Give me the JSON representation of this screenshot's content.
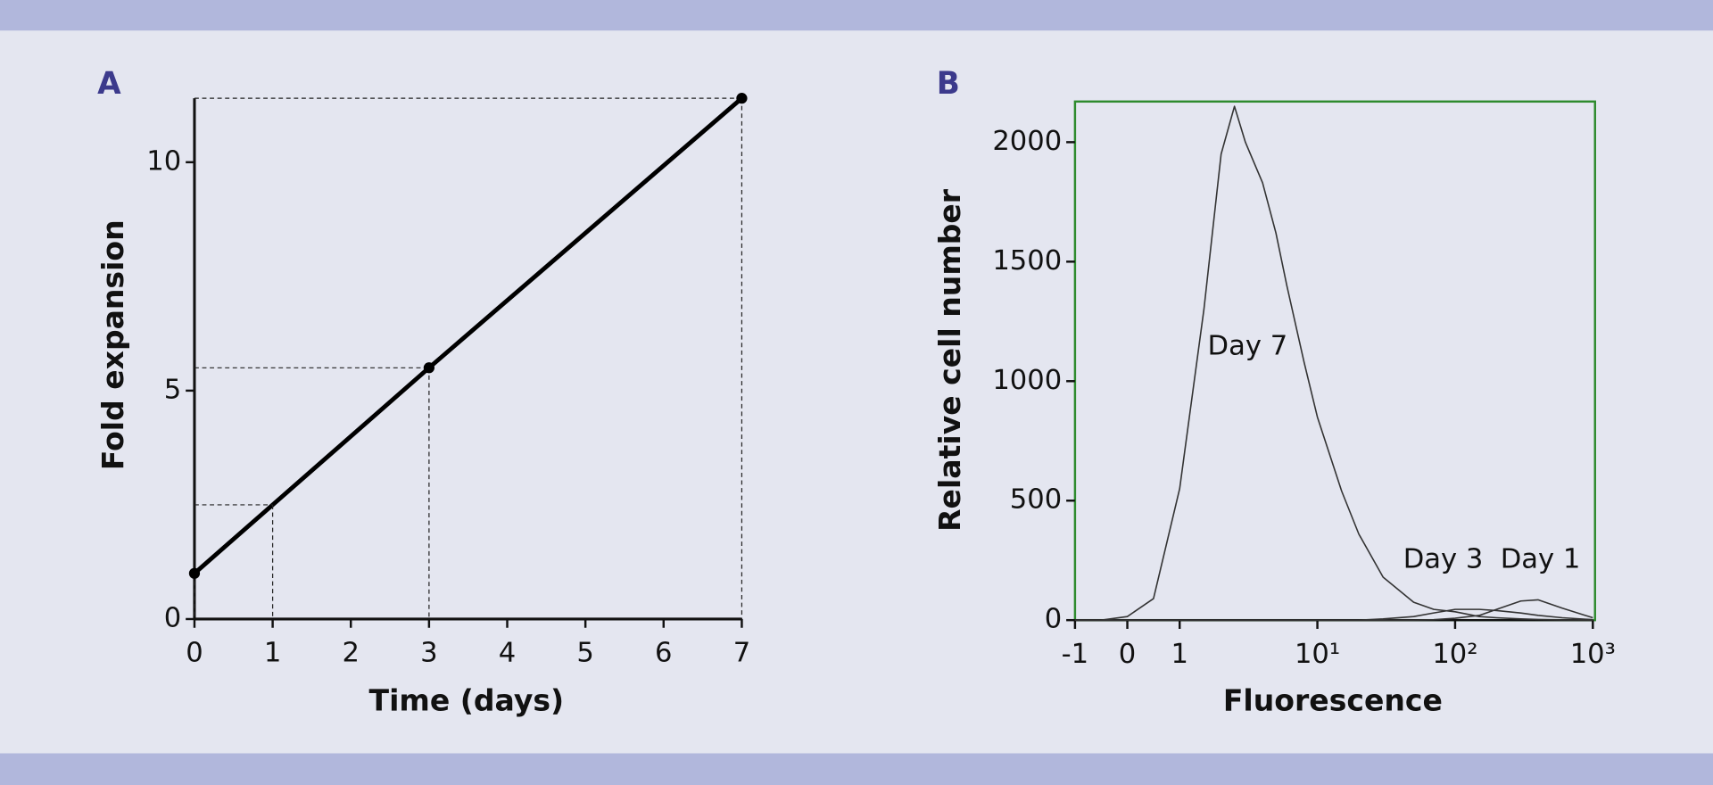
{
  "chart_data": [
    {
      "type": "line",
      "panel": "A",
      "xlabel": "Time (days)",
      "ylabel": "Fold expansion",
      "x": [
        0,
        1,
        3,
        7
      ],
      "values": [
        1,
        2.5,
        5.5,
        11.4
      ],
      "markers": [
        true,
        false,
        true,
        true
      ],
      "drop_lines": true,
      "color": "#000000",
      "xlim": [
        0,
        7
      ],
      "ylim": [
        0,
        11.4
      ],
      "xticks": [
        0,
        1,
        2,
        3,
        4,
        5,
        6,
        7
      ],
      "yticks": [
        0,
        5,
        10
      ]
    },
    {
      "type": "line",
      "panel": "B",
      "xlabel": "Fluorescence",
      "ylabel": "Relative cell number",
      "xscale": "biexponential",
      "frame_color": "#2e8b2e",
      "x": [
        -1,
        -0.5,
        0,
        0.5,
        1,
        1.5,
        2,
        2.5,
        3,
        4,
        5,
        6,
        8,
        10,
        15,
        20,
        30,
        50,
        70,
        100,
        150,
        200,
        300,
        400,
        600,
        1000
      ],
      "series": [
        {
          "name": "Day 7",
          "color": "#333333",
          "values": [
            0,
            0,
            15,
            90,
            550,
            1300,
            1950,
            2150,
            2000,
            1830,
            1620,
            1400,
            1080,
            850,
            540,
            360,
            180,
            75,
            45,
            35,
            15,
            10,
            5,
            3,
            1,
            0
          ]
        },
        {
          "name": "Day 3",
          "color": "#333333",
          "values": [
            0,
            0,
            0,
            0,
            0,
            0,
            0,
            0,
            0,
            0,
            0,
            0,
            0,
            0,
            0,
            0,
            5,
            15,
            30,
            45,
            45,
            40,
            30,
            20,
            10,
            2
          ]
        },
        {
          "name": "Day 1",
          "color": "#333333",
          "values": [
            0,
            0,
            0,
            0,
            0,
            0,
            0,
            0,
            0,
            0,
            0,
            0,
            0,
            0,
            0,
            0,
            0,
            0,
            2,
            8,
            20,
            45,
            80,
            85,
            50,
            10
          ]
        }
      ],
      "xlim": [
        -1,
        1000
      ],
      "ylim": [
        0,
        2170
      ],
      "xticks": [
        -1,
        0,
        1,
        {
          "value": 10,
          "label": "10¹"
        },
        {
          "value": 100,
          "label": "10²"
        },
        {
          "value": 1000,
          "label": "10³"
        }
      ],
      "yticks": [
        0,
        500,
        1000,
        1500,
        2000
      ]
    }
  ]
}
